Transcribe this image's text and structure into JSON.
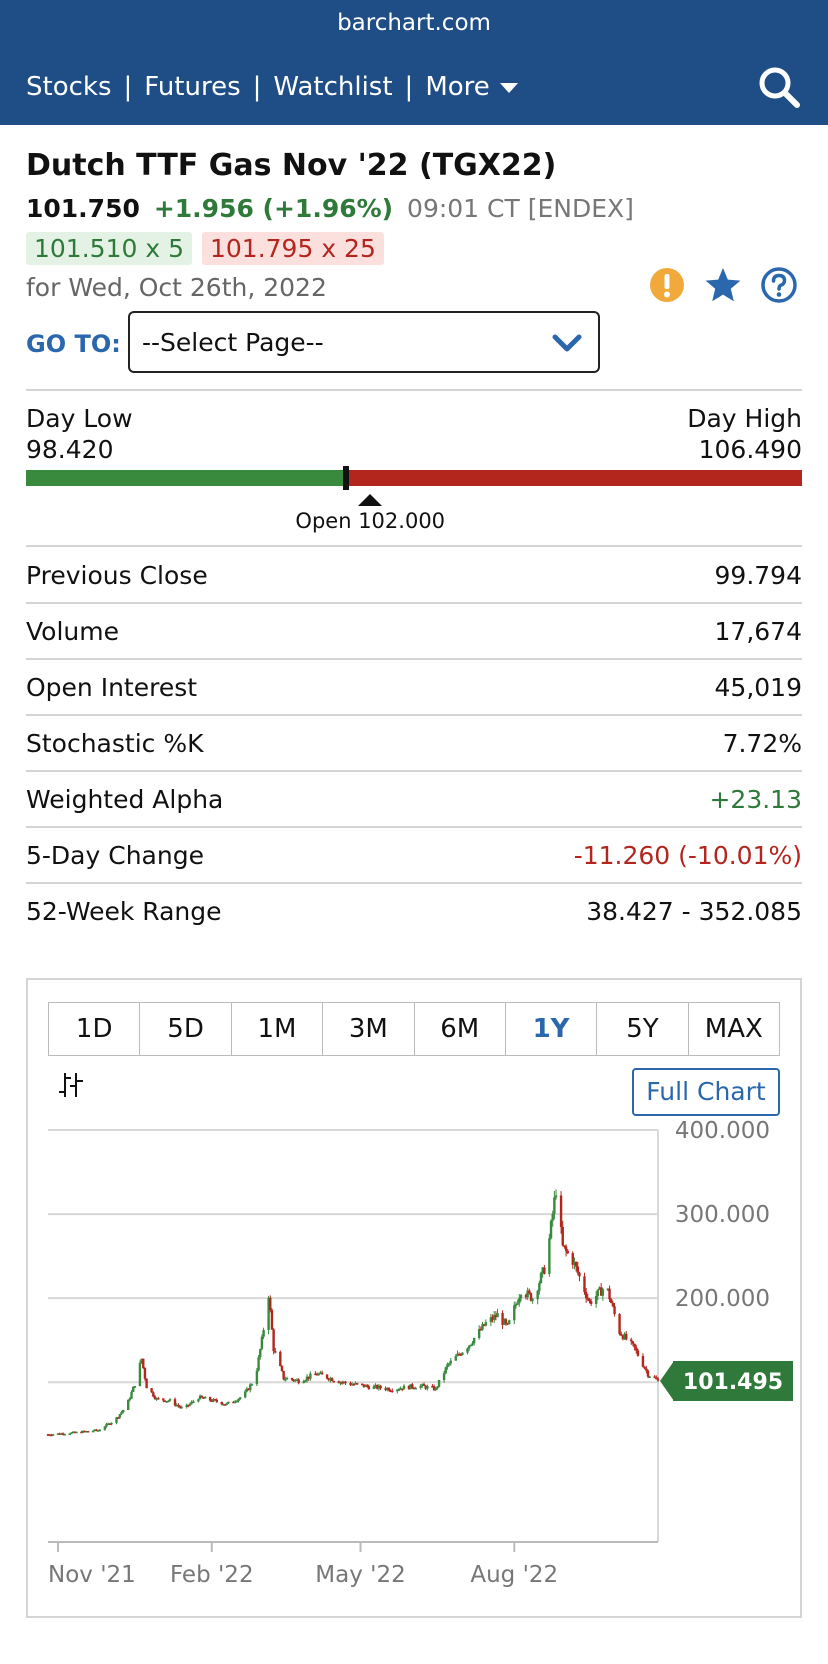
{
  "header": {
    "domain": "barchart.com",
    "nav": [
      "Stocks",
      "Futures",
      "Watchlist",
      "More"
    ]
  },
  "quote": {
    "title": "Dutch TTF Gas Nov '22 (TGX22)",
    "last": "101.750",
    "change": "+1.956 (+1.96%)",
    "time": "09:01 CT [ENDEX]",
    "bid": "101.510 x 5",
    "ask": "101.795 x 25",
    "for_date": "for Wed, Oct 26th, 2022"
  },
  "goto": {
    "label": "GO TO:",
    "selected": "--Select Page--"
  },
  "day_range": {
    "low_label": "Day Low",
    "low": "98.420",
    "high_label": "Day High",
    "high": "106.490",
    "last_value": 101.75,
    "open_value": 102.0,
    "open_label": "Open 102.000"
  },
  "stats": [
    {
      "label": "Previous Close",
      "value": "99.794",
      "tone": ""
    },
    {
      "label": "Volume",
      "value": "17,674",
      "tone": ""
    },
    {
      "label": "Open Interest",
      "value": "45,019",
      "tone": ""
    },
    {
      "label": "Stochastic %K",
      "value": "7.72%",
      "tone": ""
    },
    {
      "label": "Weighted Alpha",
      "value": "+23.13",
      "tone": "pos"
    },
    {
      "label": "5-Day Change",
      "value": "-11.260 (-10.01%)",
      "tone": "neg"
    },
    {
      "label": "52-Week Range",
      "value": "38.427 - 352.085",
      "tone": ""
    }
  ],
  "chart_tabs": [
    "1D",
    "5D",
    "1M",
    "3M",
    "6M",
    "1Y",
    "5Y",
    "MAX"
  ],
  "active_tab": "1Y",
  "full_chart_label": "Full Chart",
  "colors": {
    "brand": "#1f4e86",
    "accent": "#2b67ad",
    "up": "#3a8a3e",
    "down": "#b3261e",
    "badge": "#2f7a3a"
  },
  "chart_data": {
    "type": "candlestick",
    "x_labels": [
      "Nov '21",
      "Feb '22",
      "May '22",
      "Aug '22"
    ],
    "y_ticks": [
      "400.000",
      "300.000",
      "200.000"
    ],
    "ylim": [
      -90,
      400
    ],
    "last_price_badge": "101.495",
    "last_price_value": 101.495,
    "grid": true,
    "close_series": [
      {
        "date": "2021-10-26",
        "close": 38
      },
      {
        "date": "2021-11-10",
        "close": 40
      },
      {
        "date": "2021-11-25",
        "close": 43
      },
      {
        "date": "2021-12-05",
        "close": 55
      },
      {
        "date": "2021-12-12",
        "close": 72
      },
      {
        "date": "2021-12-17",
        "close": 98
      },
      {
        "date": "2021-12-21",
        "close": 128
      },
      {
        "date": "2021-12-24",
        "close": 95
      },
      {
        "date": "2021-12-30",
        "close": 80
      },
      {
        "date": "2022-01-07",
        "close": 78
      },
      {
        "date": "2022-01-15",
        "close": 68
      },
      {
        "date": "2022-01-24",
        "close": 82
      },
      {
        "date": "2022-02-02",
        "close": 78
      },
      {
        "date": "2022-02-10",
        "close": 74
      },
      {
        "date": "2022-02-20",
        "close": 84
      },
      {
        "date": "2022-02-27",
        "close": 105
      },
      {
        "date": "2022-03-03",
        "close": 150
      },
      {
        "date": "2022-03-07",
        "close": 205
      },
      {
        "date": "2022-03-10",
        "close": 140
      },
      {
        "date": "2022-03-16",
        "close": 105
      },
      {
        "date": "2022-03-25",
        "close": 102
      },
      {
        "date": "2022-04-05",
        "close": 110
      },
      {
        "date": "2022-04-20",
        "close": 100
      },
      {
        "date": "2022-05-05",
        "close": 95
      },
      {
        "date": "2022-05-20",
        "close": 92
      },
      {
        "date": "2022-06-05",
        "close": 96
      },
      {
        "date": "2022-06-15",
        "close": 92
      },
      {
        "date": "2022-06-22",
        "close": 120
      },
      {
        "date": "2022-07-05",
        "close": 145
      },
      {
        "date": "2022-07-15",
        "close": 170
      },
      {
        "date": "2022-07-22",
        "close": 180
      },
      {
        "date": "2022-07-28",
        "close": 165
      },
      {
        "date": "2022-08-05",
        "close": 210
      },
      {
        "date": "2022-08-12",
        "close": 200
      },
      {
        "date": "2022-08-20",
        "close": 240
      },
      {
        "date": "2022-08-26",
        "close": 330
      },
      {
        "date": "2022-08-30",
        "close": 260
      },
      {
        "date": "2022-09-05",
        "close": 245
      },
      {
        "date": "2022-09-15",
        "close": 195
      },
      {
        "date": "2022-09-25",
        "close": 215
      },
      {
        "date": "2022-10-03",
        "close": 160
      },
      {
        "date": "2022-10-12",
        "close": 140
      },
      {
        "date": "2022-10-20",
        "close": 110
      },
      {
        "date": "2022-10-26",
        "close": 101.5
      }
    ]
  }
}
